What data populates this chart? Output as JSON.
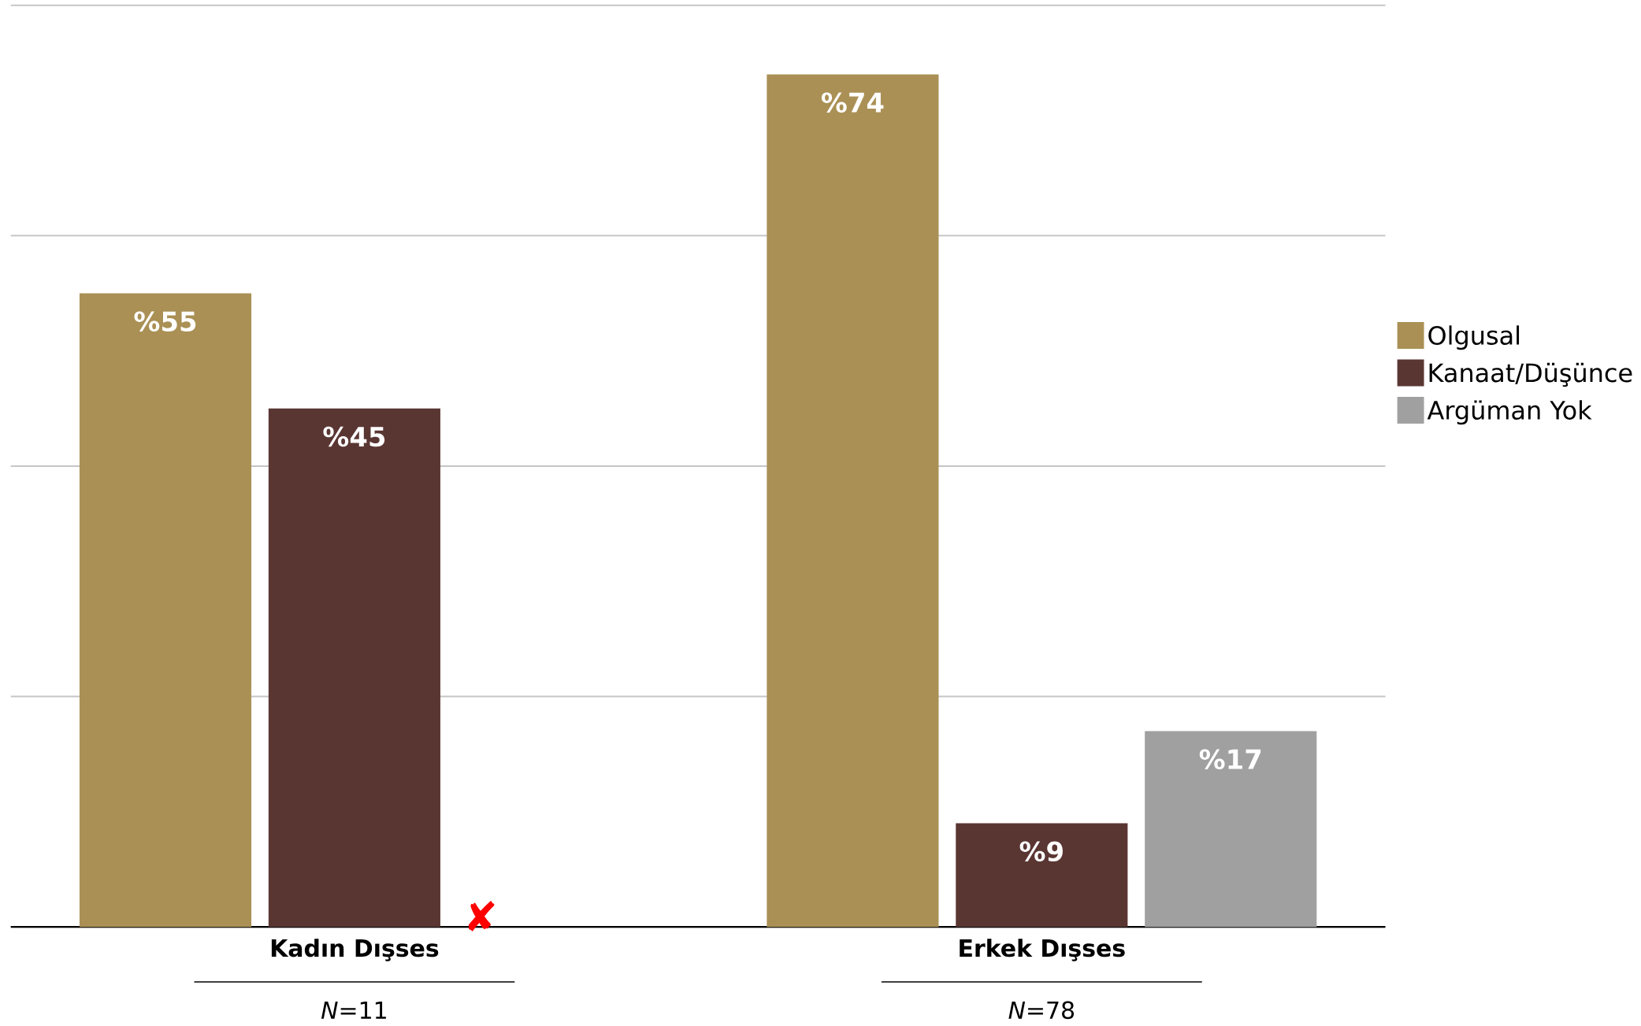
{
  "chart_data": {
    "type": "bar",
    "categories": [
      "Kadın Dışses",
      "Erkek Dışses"
    ],
    "series": [
      {
        "name": "Olgusal",
        "color": "#aa9055",
        "values": [
          55,
          74
        ],
        "value_labels": [
          "%55",
          "%74"
        ]
      },
      {
        "name": "Kanaat/Düşünce",
        "color": "#5a3633",
        "values": [
          45,
          9
        ],
        "value_labels": [
          "%45",
          "%9"
        ]
      },
      {
        "name": "Argüman Yok",
        "color": "#a0a0a0",
        "values": [
          0,
          17
        ],
        "value_labels": [
          null,
          "%17"
        ]
      }
    ],
    "ylim": [
      0,
      80
    ],
    "yticks": [
      {
        "value": 0,
        "label": null
      },
      {
        "value": 20,
        "label": null
      },
      {
        "value": 40,
        "label": null
      },
      {
        "value": 60,
        "label": null
      },
      {
        "value": 80,
        "label": null
      }
    ],
    "tick_labels": "x",
    "grid": "y",
    "legend": "right",
    "annotations": [
      "*N*=11",
      "*N*=78",
      "✘"
    ]
  }
}
